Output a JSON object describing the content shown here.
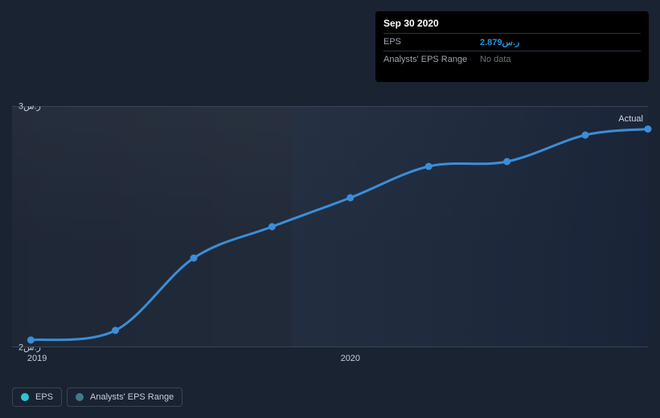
{
  "tooltip": {
    "date": "Sep 30 2020",
    "rows": [
      {
        "key": "EPS",
        "val": "2.879ر.س",
        "cls": "highlight"
      },
      {
        "key": "Analysts' EPS Range",
        "val": "No data",
        "cls": "muted"
      }
    ]
  },
  "chart": {
    "type": "line",
    "line_color": "#3b8ed8",
    "marker_color": "#3b8ed8",
    "marker_radius": 4.5,
    "line_width": 3,
    "background_color": "#1a2332",
    "grid_border_color": "#3a4454",
    "currency_suffix": "ر.س",
    "ylim": [
      2,
      3
    ],
    "yticks": [
      {
        "v": 3,
        "label": "ر.س3"
      },
      {
        "v": 2,
        "label": "ر.س2"
      }
    ],
    "x_range": [
      2018.92,
      2020.95
    ],
    "xticks": [
      {
        "v": 2019.0,
        "label": "2019"
      },
      {
        "v": 2020.0,
        "label": "2020"
      }
    ],
    "actual_label": "Actual",
    "series": [
      {
        "x": 2018.98,
        "y": 2.03
      },
      {
        "x": 2019.25,
        "y": 2.07
      },
      {
        "x": 2019.5,
        "y": 2.37
      },
      {
        "x": 2019.75,
        "y": 2.5
      },
      {
        "x": 2020.0,
        "y": 2.62
      },
      {
        "x": 2020.25,
        "y": 2.75
      },
      {
        "x": 2020.5,
        "y": 2.77
      },
      {
        "x": 2020.75,
        "y": 2.88
      },
      {
        "x": 2020.95,
        "y": 2.905
      }
    ]
  },
  "legend": {
    "items": [
      {
        "label": "EPS",
        "color": "#2cc4d6"
      },
      {
        "label": "Analysts' EPS Range",
        "color": "#3e7a88"
      }
    ]
  }
}
